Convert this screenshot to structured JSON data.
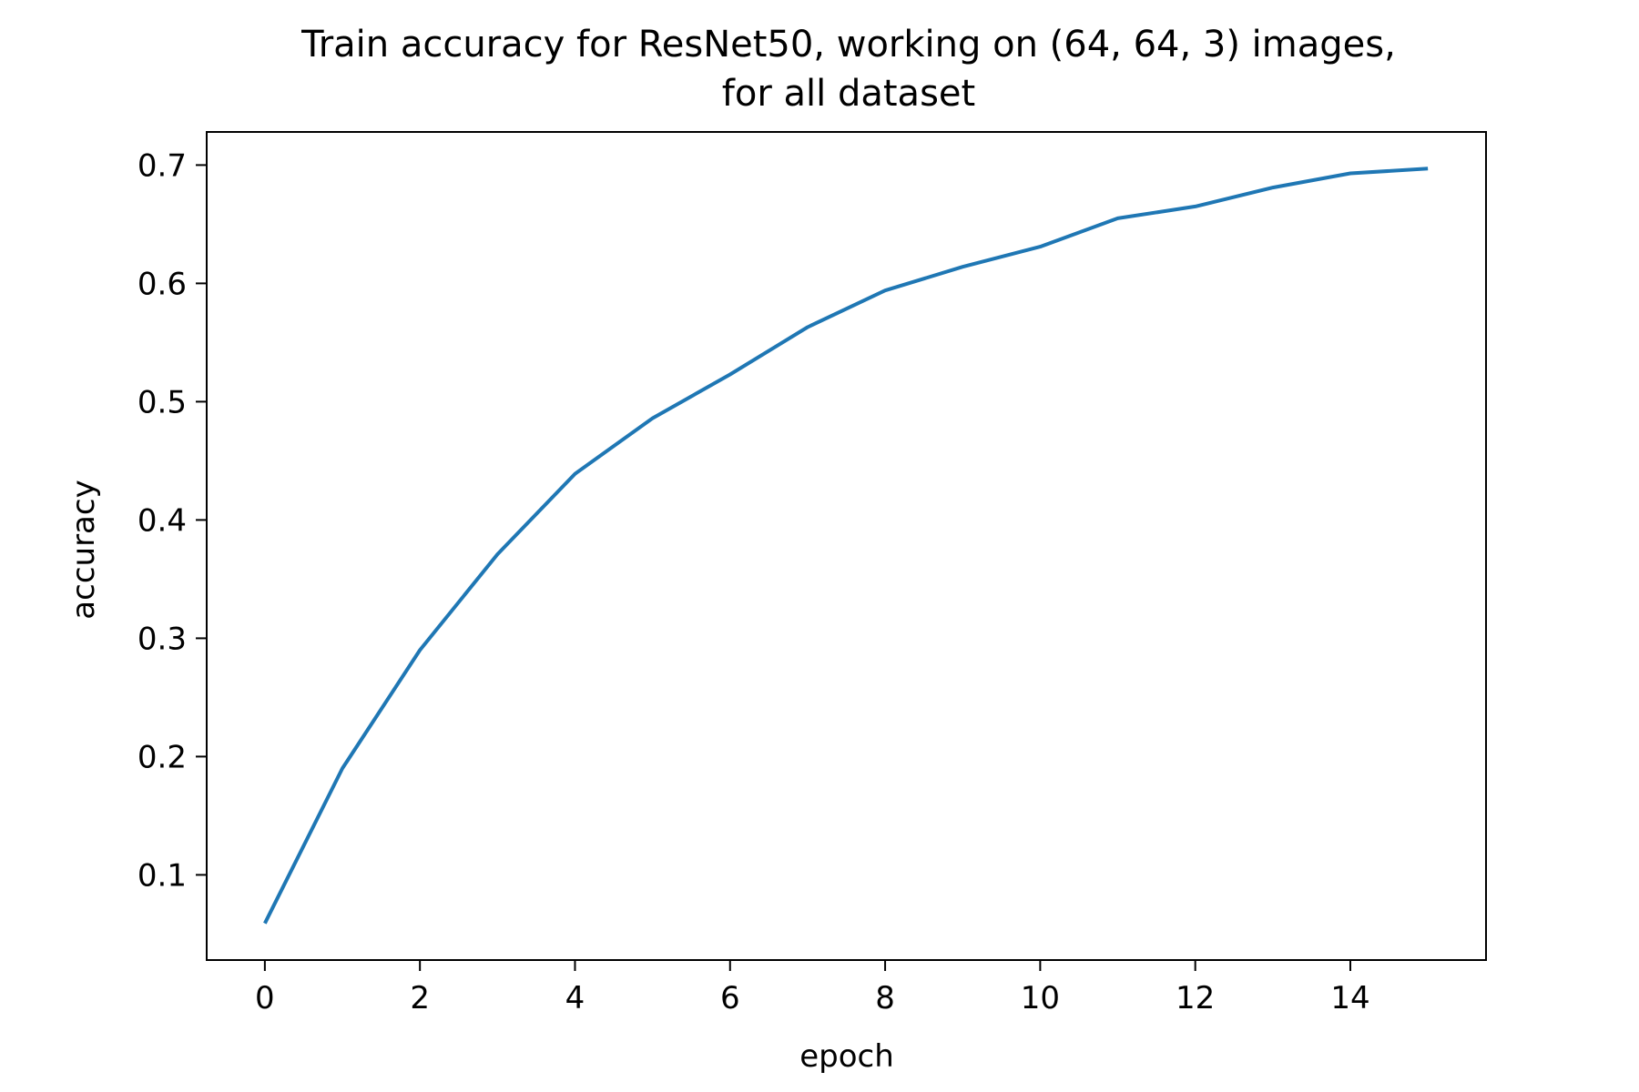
{
  "chart_data": {
    "type": "line",
    "title_lines": [
      "Train accuracy for ResNet50, working on (64, 64, 3) images,",
      "for all dataset"
    ],
    "xlabel": "epoch",
    "ylabel": "accuracy",
    "x_ticks": [
      0,
      2,
      4,
      6,
      8,
      10,
      12,
      14
    ],
    "x_tick_labels": [
      "0",
      "2",
      "4",
      "6",
      "8",
      "10",
      "12",
      "14"
    ],
    "y_ticks": [
      0.1,
      0.2,
      0.3,
      0.4,
      0.5,
      0.6,
      0.7
    ],
    "y_tick_labels": [
      "0.1",
      "0.2",
      "0.3",
      "0.4",
      "0.5",
      "0.6",
      "0.7"
    ],
    "xlim": [
      -0.75,
      15.75
    ],
    "ylim": [
      0.028,
      0.728
    ],
    "grid": false,
    "series": [
      {
        "color": "#1f77b4",
        "x": [
          0,
          1,
          2,
          3,
          4,
          5,
          6,
          7,
          8,
          9,
          10,
          11,
          12,
          13,
          14,
          15
        ],
        "y": [
          0.059,
          0.19,
          0.29,
          0.371,
          0.439,
          0.486,
          0.523,
          0.563,
          0.594,
          0.614,
          0.631,
          0.655,
          0.665,
          0.681,
          0.693,
          0.697
        ]
      }
    ]
  }
}
